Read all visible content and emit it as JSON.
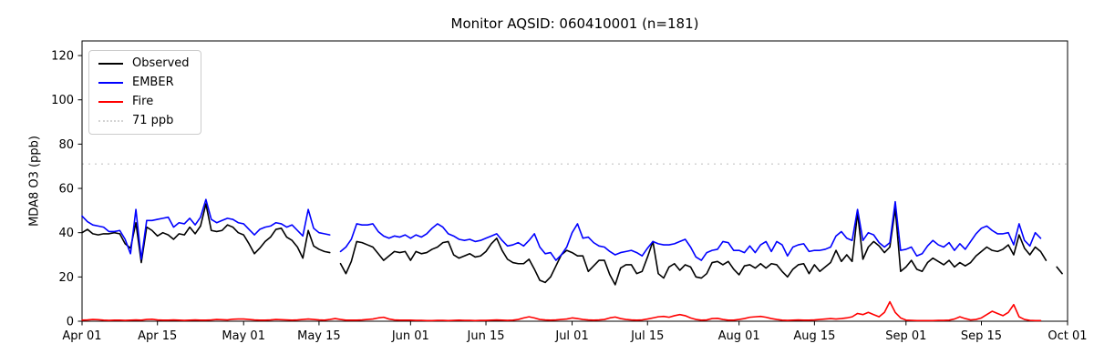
{
  "chart_data": {
    "type": "line",
    "title": "Monitor AQSID: 060410001 (n=181)",
    "ylabel": "MDA8 O3 (ppb)",
    "xlabel": "",
    "grid": false,
    "legend_position": "upper left",
    "x_start": "Apr 01",
    "x_end": "Oct 01",
    "x_total_days": 183,
    "x_tick_days": [
      0,
      14,
      30,
      44,
      61,
      75,
      91,
      105,
      122,
      136,
      153,
      167,
      183
    ],
    "x_tick_labels": [
      "Apr 01",
      "Apr 15",
      "May 01",
      "May 15",
      "Jun 01",
      "Jun 15",
      "Jul 01",
      "Jul 15",
      "Aug 01",
      "Aug 15",
      "Sep 01",
      "Sep 15",
      "Oct 01"
    ],
    "y_ticks": [
      0,
      20,
      40,
      60,
      80,
      100,
      120
    ],
    "ylim": [
      0,
      126.6
    ],
    "threshold": {
      "label": "71 ppb",
      "value": 71,
      "color": "#d3d3d3",
      "style": "dotted"
    },
    "series": [
      {
        "name": "Observed",
        "color": "#000000",
        "start_day": 0,
        "values": [
          40,
          41.5,
          39.5,
          39,
          39.5,
          39.5,
          40,
          39.5,
          35,
          33,
          44.5,
          26.5,
          42.5,
          41,
          38.5,
          40,
          39,
          37,
          39.5,
          39,
          42.5,
          39.5,
          43,
          53,
          41,
          40.5,
          41,
          43.5,
          42.5,
          40,
          39,
          35,
          30.5,
          33,
          36,
          38,
          41.5,
          42,
          38,
          36.5,
          33.5,
          28.5,
          41,
          34,
          32.5,
          31.5,
          31,
          null,
          26,
          21.5,
          27,
          36,
          35.5,
          34.5,
          33.5,
          30.5,
          27.5,
          29.5,
          31.5,
          31,
          31.5,
          27.5,
          31.5,
          30.5,
          31,
          32.5,
          33.5,
          35.5,
          36,
          30,
          28.5,
          29.5,
          30.5,
          29,
          29.5,
          31.5,
          35,
          37.5,
          32,
          28,
          26.5,
          26,
          26,
          28,
          23.5,
          18.5,
          17.5,
          20,
          25,
          30,
          32,
          31,
          29.5,
          29.5,
          22.5,
          25,
          27.5,
          27.5,
          21,
          16.5,
          24,
          25.5,
          25.5,
          21.5,
          22.5,
          29,
          36,
          21.5,
          19.5,
          24.5,
          26,
          23,
          25.5,
          24.5,
          20,
          19.5,
          21.5,
          26.5,
          27,
          25.5,
          27,
          23.5,
          21,
          25,
          25.5,
          24,
          26,
          24,
          26,
          25.5,
          22.5,
          20,
          23.5,
          25.5,
          26,
          21.5,
          25.5,
          22.5,
          24.5,
          26.5,
          32,
          27,
          30,
          27,
          49,
          28,
          33.5,
          36,
          34,
          31,
          33.5,
          51,
          22.5,
          24.5,
          27.5,
          23.5,
          22.5,
          26.5,
          28.5,
          27,
          25.5,
          27.5,
          24.5,
          26.5,
          25,
          26.5,
          29.5,
          31.5,
          33.5,
          32,
          31.5,
          32.5,
          34.5,
          30,
          39,
          33,
          30,
          33.5,
          31.5,
          27.5,
          null,
          24.5,
          21.5
        ]
      },
      {
        "name": "EMBER",
        "color": "#0000ff",
        "start_day": 0,
        "values": [
          47.5,
          45,
          43.5,
          43,
          42.5,
          40.5,
          40.5,
          41,
          37,
          30.5,
          50.5,
          28,
          45.5,
          45.5,
          46,
          46.5,
          47,
          42.5,
          44.5,
          44,
          46.5,
          43.5,
          47,
          55,
          46,
          44.5,
          45.5,
          46.5,
          46,
          44.5,
          44,
          41.5,
          39,
          41.5,
          42.5,
          43,
          44.5,
          44,
          42.5,
          43.5,
          41,
          38.5,
          50.5,
          42,
          40,
          39.5,
          39,
          null,
          31.5,
          33.5,
          37,
          44,
          43.5,
          43.5,
          44,
          40.5,
          38.5,
          37.5,
          38.5,
          38,
          39,
          37.5,
          39,
          38,
          39.5,
          42,
          44,
          42.5,
          39.5,
          38.5,
          37,
          36.5,
          37,
          36,
          36.5,
          37.5,
          38.5,
          39.5,
          36.5,
          34,
          34.5,
          35.5,
          34,
          36.5,
          39.5,
          33.5,
          30.5,
          31,
          27.5,
          30,
          33.5,
          40,
          44,
          37.5,
          38,
          35.5,
          34,
          33.5,
          31.5,
          30,
          31,
          31.5,
          32,
          31,
          29.5,
          33,
          36,
          35,
          34.5,
          34.5,
          35,
          36,
          37,
          33.5,
          29,
          27.5,
          31,
          32,
          32.5,
          36,
          35.5,
          32,
          32,
          31,
          34,
          31,
          34.5,
          36,
          31.5,
          36,
          34.5,
          29.5,
          33.5,
          34.5,
          35,
          31.5,
          32,
          32,
          32.5,
          33.5,
          38.5,
          40.5,
          37.5,
          36.5,
          50.5,
          36.5,
          40,
          39,
          35.5,
          33.5,
          35.5,
          54,
          32,
          32.5,
          33.5,
          29.5,
          30.5,
          34,
          36.5,
          34.5,
          33.5,
          35.5,
          32,
          35,
          32.5,
          36,
          39.5,
          42,
          43,
          41,
          39.5,
          39.5,
          40,
          34.5,
          44,
          36.5,
          34,
          40,
          37.5
        ]
      },
      {
        "name": "Fire",
        "color": "#ff0000",
        "start_day": 0,
        "values": [
          0.5,
          0.6,
          0.8,
          0.7,
          0.5,
          0.4,
          0.5,
          0.5,
          0.4,
          0.5,
          0.6,
          0.5,
          0.8,
          0.9,
          0.6,
          0.5,
          0.5,
          0.6,
          0.5,
          0.4,
          0.5,
          0.6,
          0.5,
          0.5,
          0.6,
          0.8,
          0.7,
          0.6,
          0.9,
          1.0,
          1.0,
          0.8,
          0.6,
          0.5,
          0.5,
          0.6,
          0.8,
          0.7,
          0.6,
          0.5,
          0.6,
          0.8,
          1.0,
          0.8,
          0.6,
          0.5,
          0.8,
          1.2,
          0.8,
          0.5,
          0.5,
          0.5,
          0.6,
          0.8,
          1.0,
          1.5,
          1.8,
          1.0,
          0.6,
          0.5,
          0.5,
          0.5,
          0.4,
          0.4,
          0.3,
          0.3,
          0.4,
          0.4,
          0.3,
          0.4,
          0.5,
          0.4,
          0.4,
          0.3,
          0.4,
          0.4,
          0.5,
          0.6,
          0.5,
          0.4,
          0.5,
          0.8,
          1.5,
          2.0,
          1.5,
          0.8,
          0.6,
          0.5,
          0.6,
          0.8,
          1.0,
          1.5,
          1.2,
          0.8,
          0.6,
          0.5,
          0.6,
          0.8,
          1.5,
          1.9,
          1.2,
          0.8,
          0.6,
          0.5,
          0.6,
          1.0,
          1.5,
          2.0,
          2.2,
          1.8,
          2.5,
          3.0,
          2.5,
          1.5,
          0.8,
          0.5,
          0.6,
          1.2,
          1.3,
          0.8,
          0.5,
          0.5,
          0.8,
          1.2,
          1.8,
          2.0,
          2.2,
          1.8,
          1.2,
          0.8,
          0.5,
          0.4,
          0.5,
          0.6,
          0.5,
          0.5,
          0.6,
          0.8,
          1.0,
          1.2,
          1.0,
          1.2,
          1.5,
          2.0,
          3.5,
          3.0,
          4.0,
          3.0,
          2.0,
          4.0,
          8.8,
          4.0,
          1.5,
          0.5,
          0.4,
          0.3,
          0.3,
          0.3,
          0.3,
          0.4,
          0.4,
          0.5,
          1.0,
          2.0,
          1.2,
          0.6,
          0.8,
          1.5,
          3.0,
          4.5,
          3.5,
          2.5,
          4.0,
          7.5,
          2.0,
          0.8,
          0.4,
          0.3,
          0.3
        ]
      }
    ]
  }
}
